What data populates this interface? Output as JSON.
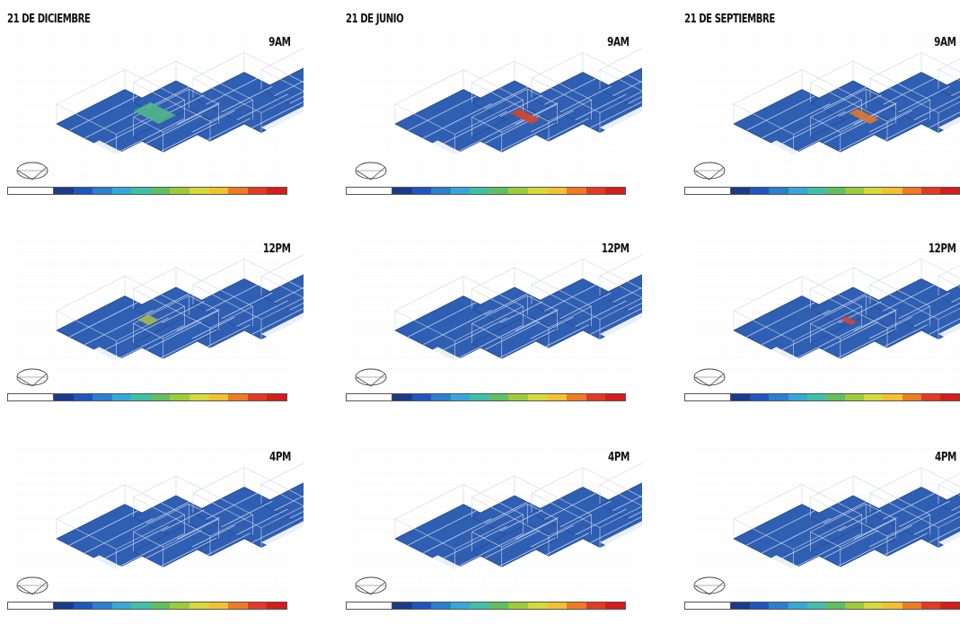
{
  "columns": [
    {
      "title": "21 DE DICIEMBRE",
      "panels": [
        {
          "time": "9AM",
          "highlight": "green"
        },
        {
          "time": "12PM",
          "highlight": "yellow-small"
        },
        {
          "time": "4PM",
          "highlight": "none"
        }
      ]
    },
    {
      "title": "21 DE JUNIO",
      "panels": [
        {
          "time": "9AM",
          "highlight": "red"
        },
        {
          "time": "12PM",
          "highlight": "none"
        },
        {
          "time": "4PM",
          "highlight": "none"
        }
      ]
    },
    {
      "title": "21 DE SEPTIEMBRE",
      "panels": [
        {
          "time": "9AM",
          "highlight": "orange"
        },
        {
          "time": "12PM",
          "highlight": "red-small"
        },
        {
          "time": "4PM",
          "highlight": "cyan"
        }
      ]
    }
  ],
  "colors": {
    "floor": "#2f5fb3",
    "floor_dark": "#234a94",
    "outline": "#cfd6e4",
    "legend": [
      "#1a3a8a",
      "#1f55c0",
      "#2a7fd0",
      "#34a9d8",
      "#3fc0a6",
      "#5fc060",
      "#9ccc3c",
      "#d7d83a",
      "#f2c12e",
      "#ef7b24",
      "#e23b22",
      "#d81b1b"
    ],
    "highlights": {
      "green": "#4fb58a",
      "yellow-small": "#a7b94a",
      "red": "#d6452a",
      "orange": "#e0782a",
      "red-small": "#d8422c",
      "cyan": "#39b9c9"
    }
  }
}
